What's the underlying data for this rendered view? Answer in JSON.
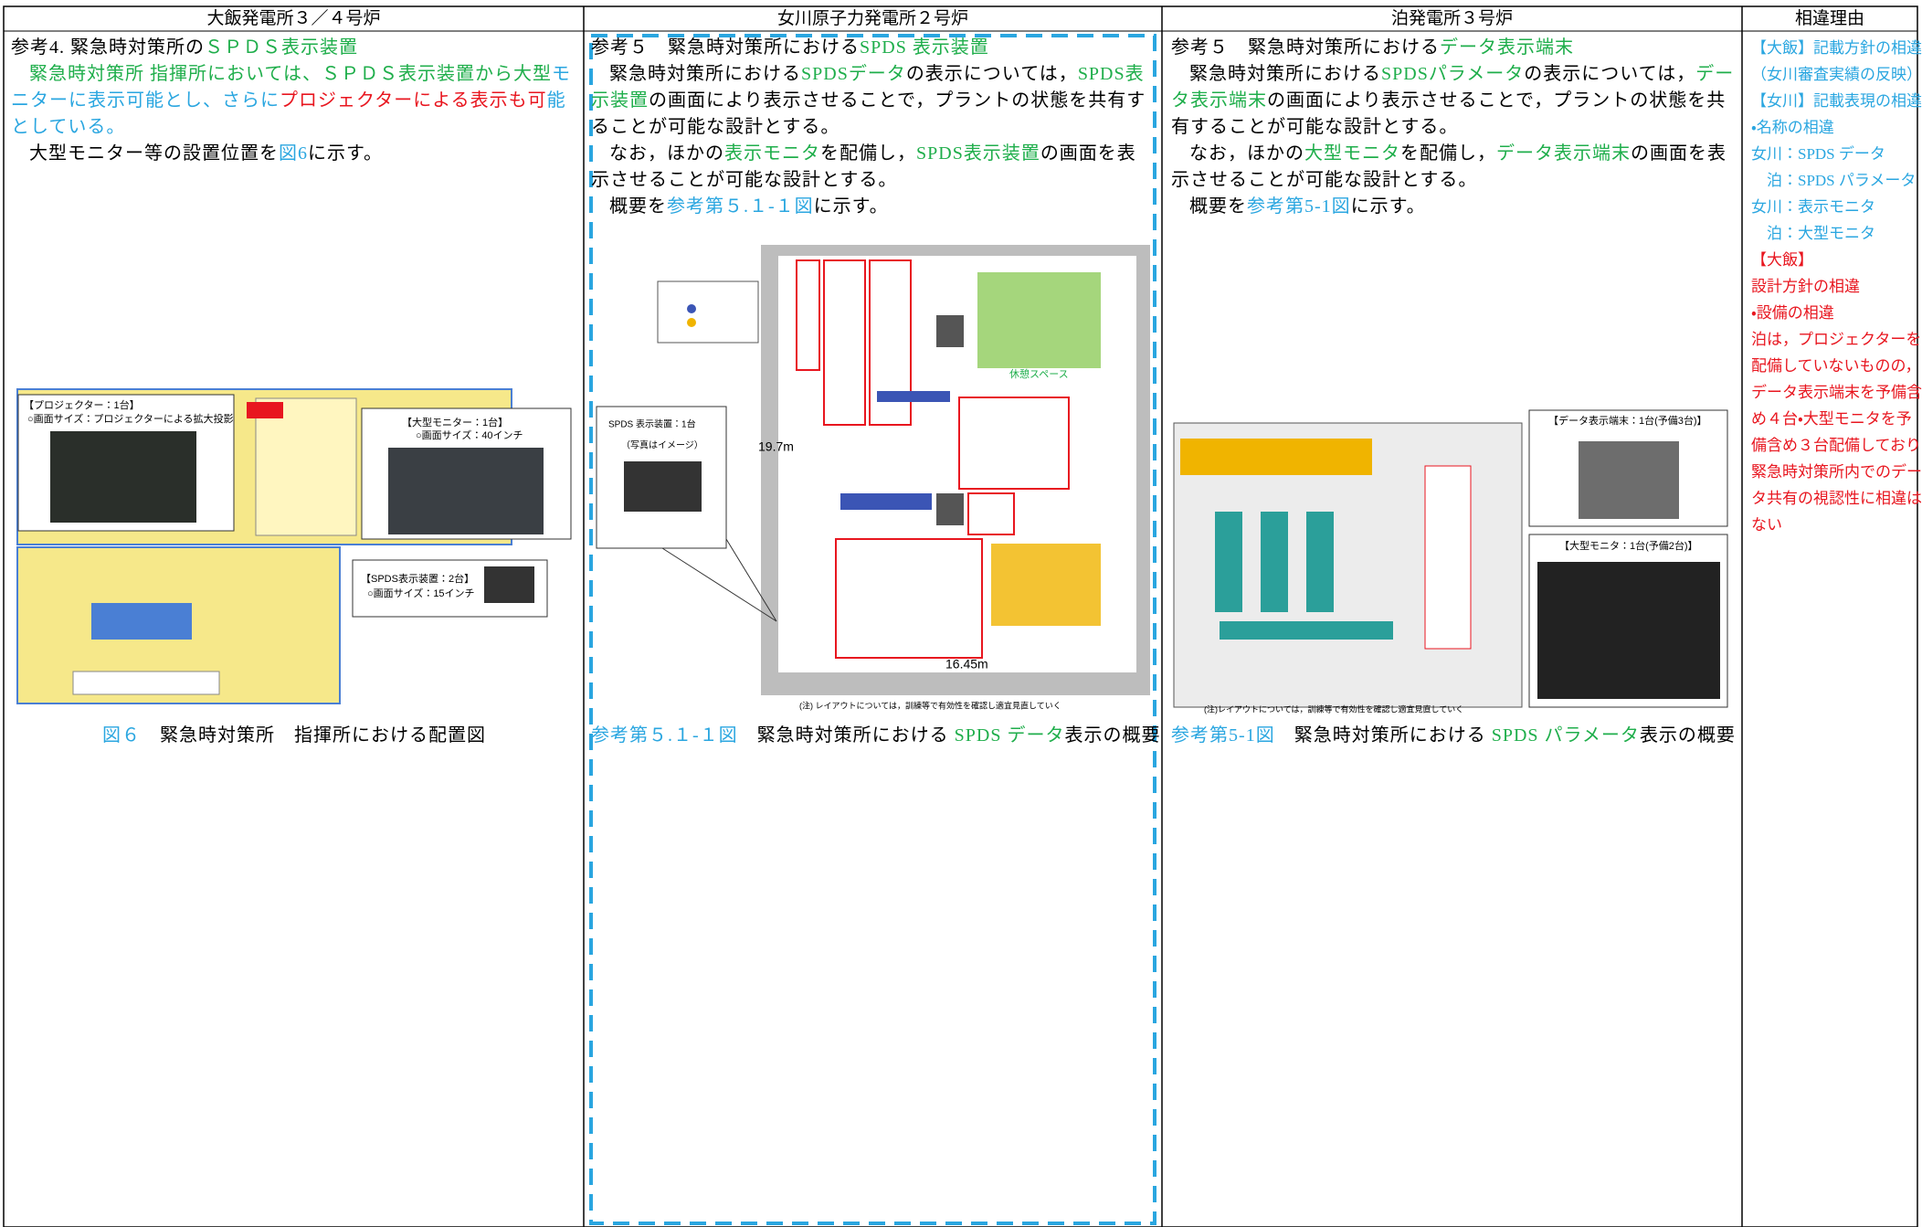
{
  "header": {
    "columns": [
      "大飯発電所３／４号炉",
      "女川原子力発電所２号炉",
      "泊発電所３号炉",
      "相違理由"
    ]
  },
  "columns": [
    {
      "heading": [
        {
          "text": "参考4. 緊急時対策所の",
          "color": "#000000"
        },
        {
          "text": "ＳＰＤＳ表示装置",
          "color": "#1fae4b"
        }
      ],
      "paragraphs": [
        [
          {
            "text": "緊急時対策所 指揮所においては、ＳＰＤＳ表示装置から大型",
            "color": "#1fae4b"
          },
          {
            "text": "モニターに表示可能とし、さらに",
            "color": "#2aa6e0"
          },
          {
            "text": "プロジェクターによる表示も可",
            "color": "#e8161f"
          },
          {
            "text": "能としている。",
            "color": "#2aa6e0"
          }
        ],
        [
          {
            "text": "大型モニター等の設置位置を",
            "color": "#000000"
          },
          {
            "text": "図6",
            "color": "#2aa6e0"
          },
          {
            "text": "に示す。",
            "color": "#000000"
          }
        ]
      ],
      "figure_labels": [
        "【プロジェクター：1台】",
        "○画面サイズ：プロジェクターによる拡大投影",
        "【大型モニター：1台】",
        "○画面サイズ：40インチ",
        "【SPDS表示装置：2台】",
        "○画面サイズ：15インチ"
      ],
      "caption": [
        {
          "text": "図６",
          "color": "#2aa6e0"
        },
        {
          "text": "　緊急時対策所　指揮所における配置図",
          "color": "#000000"
        }
      ]
    },
    {
      "heading": [
        {
          "text": "参考５　緊急時対策所における",
          "color": "#000000"
        },
        {
          "text": "SPDS 表示装置",
          "color": "#1fae4b"
        }
      ],
      "paragraphs": [
        [
          {
            "text": "緊急時対策所における",
            "color": "#000000"
          },
          {
            "text": "SPDSデータ",
            "color": "#1fae4b"
          },
          {
            "text": "の表示については，",
            "color": "#000000"
          },
          {
            "text": "SPDS表示装置",
            "color": "#1fae4b"
          },
          {
            "text": "の画面により表示させることで，プラントの状態を共有することが可能な設計とする。",
            "color": "#000000"
          }
        ],
        [
          {
            "text": "なお，ほかの",
            "color": "#000000"
          },
          {
            "text": "表示モニタ",
            "color": "#1fae4b"
          },
          {
            "text": "を配備し，",
            "color": "#000000"
          },
          {
            "text": "SPDS表示装置",
            "color": "#1fae4b"
          },
          {
            "text": "の画面を表示させることが可能な設計とする。",
            "color": "#000000"
          }
        ],
        [
          {
            "text": "概要を",
            "color": "#000000"
          },
          {
            "text": "参考第５.１-１図",
            "color": "#2aa6e0"
          },
          {
            "text": "に示す。",
            "color": "#000000"
          }
        ]
      ],
      "figure_labels": [
        "SPDS 表示装置：1台",
        "（写真はイメージ）",
        "19.7m",
        "16.45m",
        "休憩スペース",
        "(注) レイアウトについては，訓練等で有効性を確認し適宜見直していく"
      ],
      "caption": [
        {
          "text": "参考第５.１-１図",
          "color": "#2aa6e0"
        },
        {
          "text": "　緊急時対策所における ",
          "color": "#000000"
        },
        {
          "text": "SPDS データ",
          "color": "#1fae4b"
        },
        {
          "text": "表示の概要",
          "color": "#000000"
        }
      ]
    },
    {
      "heading": [
        {
          "text": "参考５　緊急時対策所における",
          "color": "#000000"
        },
        {
          "text": "データ表示端末",
          "color": "#1fae4b"
        }
      ],
      "paragraphs": [
        [
          {
            "text": "緊急時対策所における",
            "color": "#000000"
          },
          {
            "text": "SPDSパラメータ",
            "color": "#1fae4b"
          },
          {
            "text": "の表示については，",
            "color": "#000000"
          },
          {
            "text": "データ表示端末",
            "color": "#1fae4b"
          },
          {
            "text": "の画面により表示させることで，プラントの状態を共有することが可能な設計とする。",
            "color": "#000000"
          }
        ],
        [
          {
            "text": "なお，ほかの",
            "color": "#000000"
          },
          {
            "text": "大型モニタ",
            "color": "#1fae4b"
          },
          {
            "text": "を配備し，",
            "color": "#000000"
          },
          {
            "text": "データ表示端末",
            "color": "#1fae4b"
          },
          {
            "text": "の画面を表示させることが可能な設計とする。",
            "color": "#000000"
          }
        ],
        [
          {
            "text": "概要を",
            "color": "#000000"
          },
          {
            "text": "参考第5-1図",
            "color": "#2aa6e0"
          },
          {
            "text": "に示す。",
            "color": "#000000"
          }
        ]
      ],
      "figure_labels": [
        "【データ表示端末：1台(予備3台)】",
        "【大型モニタ：1台(予備2台)】",
        "(注)レイアウトについては，訓練等で有効性を確認し適宜見直していく"
      ],
      "caption": [
        {
          "text": "参考第5-1図",
          "color": "#2aa6e0"
        },
        {
          "text": "　緊急時対策所における ",
          "color": "#000000"
        },
        {
          "text": "SPDS パラメータ",
          "color": "#1fae4b"
        },
        {
          "text": "表示の概要",
          "color": "#000000"
        }
      ]
    }
  ],
  "reasons": [
    {
      "text": "【大飯】記載方針の相違",
      "color": "#2aa6e0"
    },
    {
      "text": "（女川審査実績の反映）",
      "color": "#2aa6e0"
    },
    {
      "text": "【女川】記載表現の相違",
      "color": "#2aa6e0"
    },
    {
      "text": "・名称の相違",
      "color": "#2aa6e0"
    },
    {
      "text": "女川：SPDS データ",
      "color": "#2aa6e0"
    },
    {
      "text": "　泊：SPDS パラメータ",
      "color": "#2aa6e0"
    },
    {
      "text": "女川：表示モニタ",
      "color": "#2aa6e0"
    },
    {
      "text": "　泊：大型モニタ",
      "color": "#2aa6e0"
    },
    {
      "text": "【大飯】",
      "color": "#e8161f"
    },
    {
      "text": "設計方針の相違",
      "color": "#e8161f"
    },
    {
      "text": "・設備の相違",
      "color": "#e8161f"
    },
    {
      "text": "泊は，プロジェクターを",
      "color": "#e8161f"
    },
    {
      "text": "配備していないものの，",
      "color": "#e8161f"
    },
    {
      "text": "データ表示端末を予備含",
      "color": "#e8161f"
    },
    {
      "text": "め４台・大型モニタを予",
      "color": "#e8161f"
    },
    {
      "text": "備含め３台配備しており",
      "color": "#e8161f"
    },
    {
      "text": "緊急時対策所内でのデー",
      "color": "#e8161f"
    },
    {
      "text": "タ共有の視認性に相違は",
      "color": "#e8161f"
    },
    {
      "text": "ない",
      "color": "#e8161f"
    }
  ]
}
